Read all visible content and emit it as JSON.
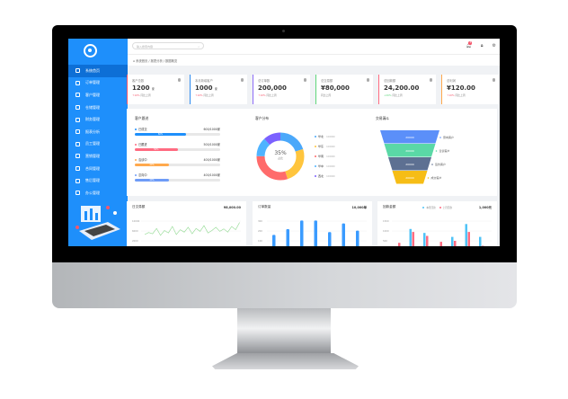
{
  "sidebar": {
    "items": [
      {
        "label": "系统首页",
        "icon": "home-icon"
      },
      {
        "label": "订单管理",
        "icon": "document-icon"
      },
      {
        "label": "客户管理",
        "icon": "user-icon"
      },
      {
        "label": "仓储管理",
        "icon": "box-icon"
      },
      {
        "label": "财务管理",
        "icon": "wallet-icon"
      },
      {
        "label": "报表分析",
        "icon": "chart-icon"
      },
      {
        "label": "员工管理",
        "icon": "staff-icon"
      },
      {
        "label": "营销管理",
        "icon": "gear-icon"
      },
      {
        "label": "合同管理",
        "icon": "briefcase-icon"
      },
      {
        "label": "售后管理",
        "icon": "service-icon"
      },
      {
        "label": "办公管理",
        "icon": "monitor-icon"
      }
    ],
    "active": 0
  },
  "header": {
    "search_placeholder": "输入搜索内容",
    "notification_count": "3"
  },
  "breadcrumb": "系统首页 / 报表分析 / 数据概览",
  "cards": [
    {
      "title": "客户总数",
      "value": "1200",
      "unit": "家",
      "trend": "↑10%",
      "note": "同比上周",
      "color": "#f5576c"
    },
    {
      "title": "本月新增客户",
      "value": "1000",
      "unit": "家",
      "trend": "↑10%",
      "note": "同比上周",
      "color": "#2d8cf0"
    },
    {
      "title": "总订单数",
      "value": "200,000",
      "unit": "",
      "trend": "↑10%",
      "note": "同比上周",
      "color": "#8c6cf7"
    },
    {
      "title": "总交易额",
      "value": "¥80,000",
      "unit": "",
      "trend": "",
      "note": "同比上周",
      "color": "#5ed67a"
    },
    {
      "title": "总回款额",
      "value": "24,200.00",
      "unit": "",
      "trend": "↓20%",
      "note": "同比上周",
      "color": "#ff6b81"
    },
    {
      "title": "总利润",
      "value": "¥120.00",
      "unit": "",
      "trend": "↑10%",
      "note": "同比上周",
      "color": "#ffa94d"
    }
  ],
  "progress": {
    "title": "客户跟进",
    "rows": [
      {
        "label": "已成交",
        "value": "600/1000家",
        "pct": 60,
        "color": "#1e8ffb"
      },
      {
        "label": "已跟进",
        "value": "500/1000家",
        "pct": 50,
        "color": "#ff6b81"
      },
      {
        "label": "洽谈中",
        "value": "400/1000家",
        "pct": 40,
        "color": "#ffa94d"
      },
      {
        "label": "意向中",
        "value": "400/1000家",
        "pct": 40,
        "color": "#6e9cf7"
      }
    ]
  },
  "donut": {
    "title": "客户分布",
    "center": "35%",
    "center_sub": "占比",
    "items": [
      {
        "label": "华北",
        "value": "10000",
        "color": "#4ba8fa",
        "share": 20
      },
      {
        "label": "华东",
        "value": "10000",
        "color": "#ffc53d",
        "share": 25
      },
      {
        "label": "华南",
        "value": "10000",
        "color": "#ff6b6b",
        "share": 30
      },
      {
        "label": "华中",
        "value": "10000",
        "color": "#4fb3ff",
        "share": 13
      },
      {
        "label": "西北",
        "value": "10000",
        "color": "#7b61ff",
        "share": 12
      }
    ]
  },
  "funnel": {
    "title": "交易漏斗",
    "stages": [
      {
        "label": "意向客户",
        "value": "20000",
        "color": "#5b8ff9"
      },
      {
        "label": "洽谈客户",
        "value": "20000",
        "color": "#5ad8a6"
      },
      {
        "label": "签约客户",
        "value": "20000",
        "color": "#5d7092"
      },
      {
        "label": "成交客户",
        "value": "20000",
        "color": "#f6bd16"
      }
    ]
  },
  "chart_data": [
    {
      "type": "line",
      "title": "日交易额",
      "total": "¥8,000.00",
      "yticks": [
        "10000",
        "6000",
        "2000"
      ],
      "values": [
        40,
        45,
        42,
        55,
        38,
        50,
        44,
        60,
        40,
        52,
        46,
        58,
        42,
        55,
        48,
        62,
        44,
        50,
        58,
        48,
        54,
        46,
        60,
        52,
        70
      ],
      "color": "#8fd98f"
    },
    {
      "type": "bar",
      "title": "订单数量",
      "total": "10,000单",
      "yticks": [
        "300",
        "200",
        "100"
      ],
      "values": [
        110,
        150,
        210,
        210,
        130,
        190,
        140
      ],
      "color": "#3a9bff"
    },
    {
      "type": "bar",
      "title": "回款金额",
      "total": "1,000元",
      "yticks": [
        "1500",
        "1000",
        "500"
      ],
      "series": [
        {
          "name": "本月回款",
          "values": [
            0,
            1100,
            900,
            0,
            700,
            1350,
            700
          ],
          "color": "#4fc3f7"
        },
        {
          "name": "上月回款",
          "values": [
            400,
            950,
            750,
            450,
            500,
            950,
            250
          ],
          "color": "#ff6b81"
        }
      ]
    }
  ]
}
